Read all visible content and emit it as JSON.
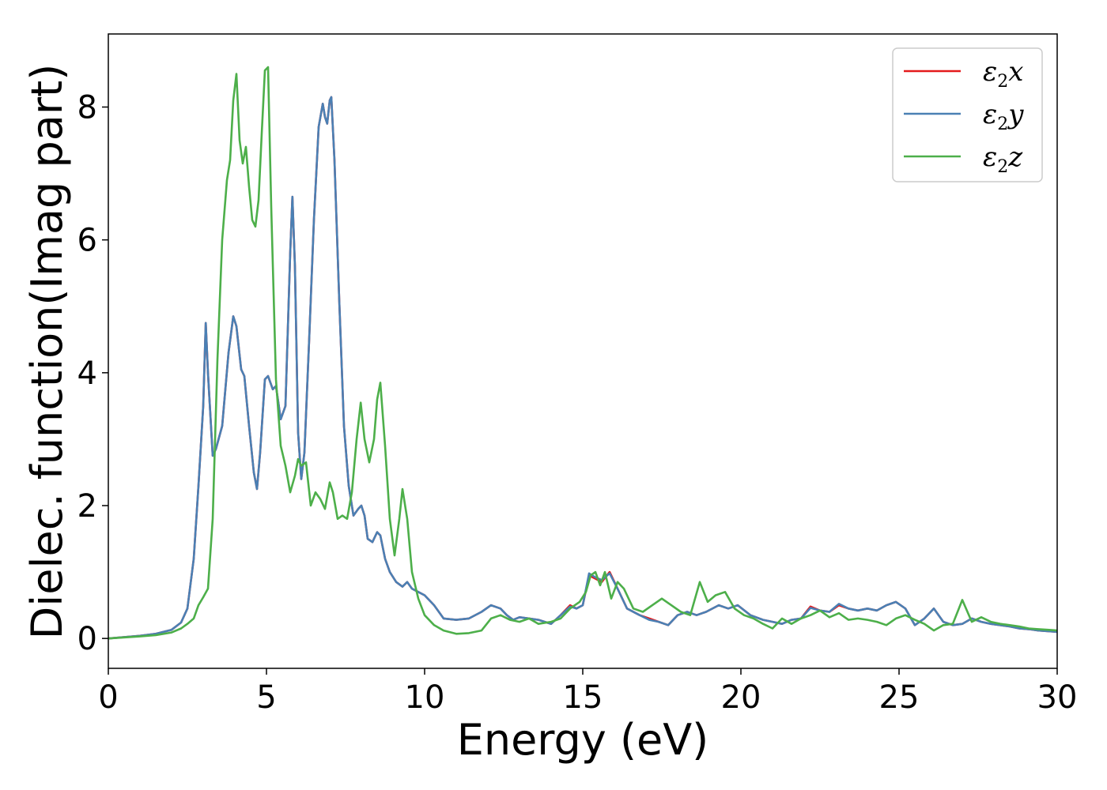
{
  "chart_data": {
    "type": "line",
    "title": "",
    "xlabel": "Energy (eV)",
    "ylabel": "Dielec. function(Imag part)",
    "xlim": [
      0,
      30
    ],
    "ylim": [
      -0.45,
      9.1
    ],
    "xticks": [
      0,
      5,
      10,
      15,
      20,
      25,
      30
    ],
    "yticks": [
      0,
      2,
      4,
      6,
      8
    ],
    "grid": false,
    "legend_position": "top-right",
    "series": [
      {
        "name": "ε2x",
        "legend": {
          "base": "ε",
          "sub": "2",
          "var": "x"
        },
        "color": "#e41a1c",
        "x": [
          0,
          1,
          1.5,
          2,
          2.3,
          2.5,
          2.7,
          2.85,
          3.0,
          3.08,
          3.15,
          3.3,
          3.4,
          3.6,
          3.8,
          3.95,
          4.05,
          4.2,
          4.3,
          4.45,
          4.6,
          4.7,
          4.8,
          4.95,
          5.05,
          5.2,
          5.3,
          5.45,
          5.6,
          5.75,
          5.82,
          5.9,
          6.0,
          6.1,
          6.2,
          6.35,
          6.5,
          6.65,
          6.78,
          6.85,
          6.92,
          7.0,
          7.05,
          7.15,
          7.3,
          7.45,
          7.6,
          7.75,
          7.9,
          8.0,
          8.1,
          8.2,
          8.35,
          8.5,
          8.6,
          8.75,
          8.9,
          9.1,
          9.3,
          9.45,
          9.6,
          9.8,
          10.0,
          10.3,
          10.6,
          11.0,
          11.4,
          11.8,
          12.1,
          12.4,
          12.6,
          12.8,
          13.0,
          13.3,
          13.6,
          14.0,
          14.3,
          14.6,
          14.8,
          15.0,
          15.2,
          15.4,
          15.6,
          15.85,
          16.1,
          16.4,
          16.8,
          17.1,
          17.4,
          17.7,
          18.0,
          18.3,
          18.6,
          18.9,
          19.3,
          19.6,
          19.9,
          20.3,
          20.7,
          21.0,
          21.3,
          21.6,
          21.9,
          22.2,
          22.5,
          22.8,
          23.1,
          23.4,
          23.7,
          24.0,
          24.3,
          24.6,
          24.9,
          25.2,
          25.5,
          25.8,
          26.1,
          26.4,
          26.7,
          27.0,
          27.3,
          27.6,
          27.9,
          28.2,
          28.5,
          28.8,
          29.1,
          29.4,
          29.7,
          30.0
        ],
        "y": [
          0,
          0.04,
          0.07,
          0.13,
          0.24,
          0.45,
          1.2,
          2.3,
          3.5,
          4.75,
          4.0,
          2.75,
          2.85,
          3.2,
          4.3,
          4.85,
          4.7,
          4.05,
          3.95,
          3.2,
          2.5,
          2.25,
          2.8,
          3.9,
          3.95,
          3.75,
          3.8,
          3.3,
          3.5,
          5.8,
          6.65,
          5.6,
          3.1,
          2.4,
          2.8,
          4.5,
          6.3,
          7.7,
          8.05,
          7.85,
          7.75,
          8.1,
          8.15,
          7.2,
          5.1,
          3.2,
          2.3,
          1.85,
          1.95,
          2.0,
          1.85,
          1.5,
          1.45,
          1.6,
          1.55,
          1.2,
          1.0,
          0.85,
          0.78,
          0.85,
          0.75,
          0.7,
          0.65,
          0.5,
          0.3,
          0.28,
          0.3,
          0.4,
          0.5,
          0.45,
          0.35,
          0.28,
          0.32,
          0.3,
          0.28,
          0.22,
          0.35,
          0.5,
          0.45,
          0.5,
          0.95,
          0.9,
          0.85,
          1.0,
          0.75,
          0.45,
          0.35,
          0.3,
          0.25,
          0.2,
          0.35,
          0.4,
          0.35,
          0.4,
          0.5,
          0.45,
          0.5,
          0.35,
          0.28,
          0.25,
          0.22,
          0.28,
          0.3,
          0.48,
          0.42,
          0.4,
          0.5,
          0.45,
          0.42,
          0.45,
          0.42,
          0.5,
          0.55,
          0.45,
          0.2,
          0.3,
          0.45,
          0.25,
          0.2,
          0.22,
          0.3,
          0.25,
          0.22,
          0.2,
          0.18,
          0.15,
          0.14,
          0.12,
          0.11,
          0.1
        ]
      },
      {
        "name": "ε2y",
        "legend": {
          "base": "ε",
          "sub": "2",
          "var": "y"
        },
        "color": "#4a80b4",
        "x": [
          0,
          1,
          1.5,
          2,
          2.3,
          2.5,
          2.7,
          2.85,
          3.0,
          3.08,
          3.15,
          3.3,
          3.4,
          3.6,
          3.8,
          3.95,
          4.05,
          4.2,
          4.3,
          4.45,
          4.6,
          4.7,
          4.8,
          4.95,
          5.05,
          5.2,
          5.3,
          5.45,
          5.6,
          5.75,
          5.82,
          5.9,
          6.0,
          6.1,
          6.2,
          6.35,
          6.5,
          6.65,
          6.78,
          6.85,
          6.92,
          7.0,
          7.05,
          7.15,
          7.3,
          7.45,
          7.6,
          7.75,
          7.9,
          8.0,
          8.1,
          8.2,
          8.35,
          8.5,
          8.6,
          8.75,
          8.9,
          9.1,
          9.3,
          9.45,
          9.6,
          9.8,
          10.0,
          10.3,
          10.6,
          11.0,
          11.4,
          11.8,
          12.1,
          12.4,
          12.6,
          12.8,
          13.0,
          13.3,
          13.6,
          14.0,
          14.3,
          14.6,
          14.8,
          15.0,
          15.2,
          15.4,
          15.6,
          15.85,
          16.1,
          16.4,
          16.8,
          17.1,
          17.4,
          17.7,
          18.0,
          18.3,
          18.6,
          18.9,
          19.3,
          19.6,
          19.9,
          20.3,
          20.7,
          21.0,
          21.3,
          21.6,
          21.9,
          22.2,
          22.5,
          22.8,
          23.1,
          23.4,
          23.7,
          24.0,
          24.3,
          24.6,
          24.9,
          25.2,
          25.5,
          25.8,
          26.1,
          26.4,
          26.7,
          27.0,
          27.3,
          27.6,
          27.9,
          28.2,
          28.5,
          28.8,
          29.1,
          29.4,
          29.7,
          30.0
        ],
        "y": [
          0,
          0.04,
          0.07,
          0.13,
          0.24,
          0.45,
          1.2,
          2.3,
          3.5,
          4.75,
          4.0,
          2.75,
          2.85,
          3.2,
          4.3,
          4.85,
          4.7,
          4.05,
          3.95,
          3.2,
          2.5,
          2.25,
          2.8,
          3.9,
          3.95,
          3.75,
          3.8,
          3.3,
          3.5,
          5.8,
          6.65,
          5.6,
          3.1,
          2.4,
          2.8,
          4.5,
          6.3,
          7.7,
          8.05,
          7.85,
          7.75,
          8.1,
          8.15,
          7.2,
          5.1,
          3.2,
          2.3,
          1.85,
          1.95,
          2.0,
          1.85,
          1.5,
          1.45,
          1.6,
          1.55,
          1.2,
          1.0,
          0.85,
          0.78,
          0.85,
          0.75,
          0.7,
          0.65,
          0.5,
          0.3,
          0.28,
          0.3,
          0.4,
          0.5,
          0.45,
          0.35,
          0.28,
          0.32,
          0.3,
          0.28,
          0.22,
          0.35,
          0.48,
          0.45,
          0.5,
          0.98,
          0.92,
          0.88,
          0.98,
          0.75,
          0.45,
          0.35,
          0.28,
          0.25,
          0.2,
          0.35,
          0.4,
          0.35,
          0.4,
          0.5,
          0.45,
          0.5,
          0.35,
          0.28,
          0.25,
          0.22,
          0.28,
          0.3,
          0.46,
          0.42,
          0.4,
          0.52,
          0.45,
          0.42,
          0.45,
          0.42,
          0.5,
          0.55,
          0.45,
          0.2,
          0.3,
          0.45,
          0.25,
          0.2,
          0.22,
          0.3,
          0.25,
          0.22,
          0.2,
          0.18,
          0.15,
          0.14,
          0.12,
          0.11,
          0.1
        ]
      },
      {
        "name": "ε2z",
        "legend": {
          "base": "ε",
          "sub": "2",
          "var": "z"
        },
        "color": "#4daf4a",
        "x": [
          0,
          1,
          1.5,
          2,
          2.3,
          2.5,
          2.7,
          2.85,
          3.0,
          3.15,
          3.3,
          3.45,
          3.6,
          3.75,
          3.85,
          3.95,
          4.05,
          4.15,
          4.25,
          4.35,
          4.45,
          4.55,
          4.65,
          4.75,
          4.85,
          4.95,
          5.05,
          5.15,
          5.3,
          5.45,
          5.6,
          5.75,
          5.9,
          6.0,
          6.1,
          6.25,
          6.4,
          6.55,
          6.7,
          6.85,
          7.0,
          7.1,
          7.25,
          7.4,
          7.55,
          7.7,
          7.85,
          7.98,
          8.1,
          8.25,
          8.4,
          8.5,
          8.6,
          8.75,
          8.9,
          9.05,
          9.2,
          9.3,
          9.45,
          9.6,
          9.8,
          10.0,
          10.3,
          10.6,
          11.0,
          11.4,
          11.8,
          12.1,
          12.4,
          12.7,
          13.0,
          13.3,
          13.6,
          14.0,
          14.3,
          14.6,
          14.9,
          15.1,
          15.25,
          15.4,
          15.55,
          15.7,
          15.9,
          16.1,
          16.3,
          16.6,
          16.9,
          17.2,
          17.5,
          17.8,
          18.1,
          18.4,
          18.7,
          18.95,
          19.2,
          19.5,
          19.8,
          20.1,
          20.4,
          20.7,
          21.0,
          21.3,
          21.6,
          21.9,
          22.2,
          22.5,
          22.8,
          23.1,
          23.4,
          23.7,
          24.0,
          24.3,
          24.6,
          24.9,
          25.2,
          25.5,
          25.8,
          26.1,
          26.4,
          26.7,
          27.0,
          27.3,
          27.6,
          27.9,
          28.2,
          28.5,
          28.8,
          29.1,
          29.4,
          29.7,
          30.0
        ],
        "y": [
          0,
          0.03,
          0.05,
          0.09,
          0.15,
          0.22,
          0.3,
          0.5,
          0.62,
          0.75,
          1.8,
          4.2,
          6.0,
          6.9,
          7.2,
          8.1,
          8.5,
          7.5,
          7.15,
          7.4,
          6.8,
          6.3,
          6.2,
          6.6,
          7.6,
          8.55,
          8.6,
          6.5,
          3.9,
          2.9,
          2.6,
          2.2,
          2.45,
          2.7,
          2.6,
          2.65,
          2.0,
          2.2,
          2.1,
          1.95,
          2.35,
          2.2,
          1.8,
          1.85,
          1.8,
          2.2,
          3.0,
          3.55,
          3.0,
          2.65,
          3.0,
          3.6,
          3.85,
          2.9,
          1.8,
          1.25,
          1.8,
          2.25,
          1.8,
          1.0,
          0.6,
          0.35,
          0.2,
          0.12,
          0.07,
          0.08,
          0.12,
          0.3,
          0.35,
          0.28,
          0.25,
          0.3,
          0.22,
          0.25,
          0.3,
          0.45,
          0.55,
          0.7,
          0.95,
          1.0,
          0.8,
          1.0,
          0.6,
          0.85,
          0.75,
          0.45,
          0.4,
          0.5,
          0.6,
          0.5,
          0.4,
          0.35,
          0.85,
          0.55,
          0.65,
          0.7,
          0.45,
          0.35,
          0.3,
          0.22,
          0.15,
          0.3,
          0.22,
          0.3,
          0.35,
          0.42,
          0.32,
          0.38,
          0.28,
          0.3,
          0.28,
          0.25,
          0.2,
          0.3,
          0.35,
          0.28,
          0.22,
          0.12,
          0.2,
          0.22,
          0.58,
          0.25,
          0.32,
          0.25,
          0.22,
          0.2,
          0.18,
          0.15,
          0.14,
          0.13,
          0.12
        ]
      }
    ]
  }
}
